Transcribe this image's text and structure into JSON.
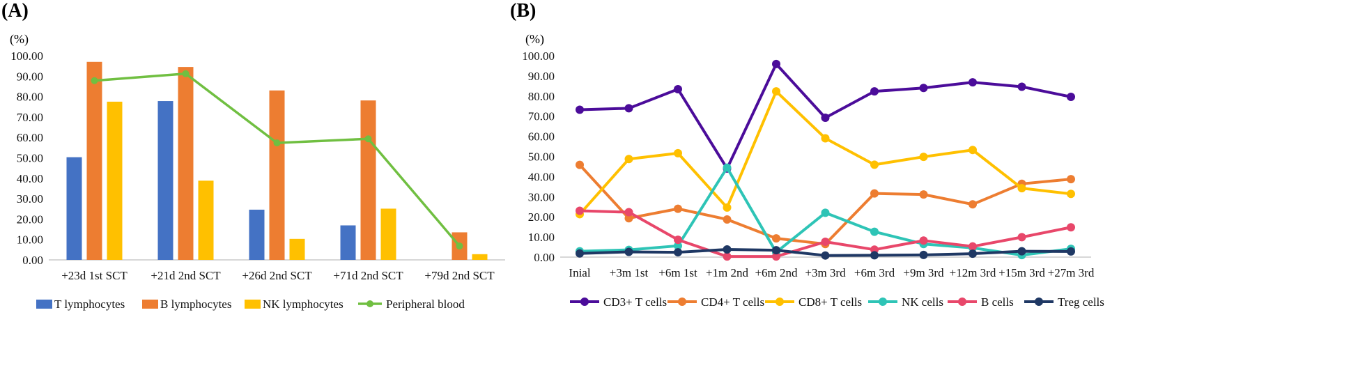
{
  "chart_data": [
    {
      "panel": "(A)",
      "type": "bar",
      "unit": "(%)",
      "ylim": [
        0,
        100
      ],
      "yticks": [
        "0.00",
        "10.00",
        "20.00",
        "30.00",
        "40.00",
        "50.00",
        "60.00",
        "70.00",
        "80.00",
        "90.00",
        "100.00"
      ],
      "categories": [
        "+23d 1st SCT",
        "+21d 2nd SCT",
        "+26d 2nd SCT",
        "+71d 2nd SCT",
        "+79d 2nd SCT"
      ],
      "series": [
        {
          "name": "T lymphocytes",
          "color": "#4472C4",
          "values": [
            50.3,
            77.8,
            24.6,
            16.9,
            0
          ]
        },
        {
          "name": "B lymphocytes",
          "color": "#ED7D31",
          "values": [
            97.0,
            94.5,
            83.0,
            78.1,
            13.5
          ]
        },
        {
          "name": "NK lymphocytes",
          "color": "#FFC000",
          "values": [
            77.5,
            38.8,
            10.3,
            25.1,
            2.8
          ]
        }
      ],
      "line_series": [
        {
          "name": "Peripheral blood",
          "color": "#70BF41",
          "values": [
            87.8,
            91.2,
            57.3,
            59.3,
            6.8
          ]
        }
      ],
      "legend_position": "bottom"
    },
    {
      "panel": "(B)",
      "type": "line",
      "unit": "(%)",
      "ylim": [
        0,
        100
      ],
      "yticks": [
        "0.00",
        "10.00",
        "20.00",
        "30.00",
        "40.00",
        "50.00",
        "60.00",
        "70.00",
        "80.00",
        "90.00",
        "100.00"
      ],
      "categories": [
        "Inial",
        "+3m 1st",
        "+6m 1st",
        "+1m 2nd",
        "+6m 2nd",
        "+3m 3rd",
        "+6m 3rd",
        "+9m 3rd",
        "+12m 3rd",
        "+15m 3rd",
        "+27m 3rd"
      ],
      "series": [
        {
          "name": "CD3+ T cells",
          "color": "#4B0C9A",
          "values": [
            73.2,
            73.9,
            83.4,
            44.0,
            95.9,
            69.2,
            82.3,
            84.0,
            86.8,
            84.6,
            79.6
          ]
        },
        {
          "name": "CD4+ T cells",
          "color": "#ED7D31",
          "values": [
            45.8,
            19.3,
            24.0,
            18.7,
            9.3,
            6.5,
            31.6,
            31.1,
            26.2,
            36.4,
            38.7
          ]
        },
        {
          "name": "CD8+ T cells",
          "color": "#FFC000",
          "values": [
            21.3,
            48.7,
            51.6,
            24.6,
            82.3,
            59.0,
            45.9,
            49.8,
            53.2,
            34.2,
            31.4
          ]
        },
        {
          "name": "NK cells",
          "color": "#2EC4B6",
          "values": [
            2.9,
            3.6,
            5.6,
            44.4,
            2.4,
            22.0,
            12.6,
            6.5,
            4.6,
            1.0,
            4.1
          ]
        },
        {
          "name": "B cells",
          "color": "#E8476A",
          "values": [
            23.0,
            22.3,
            8.6,
            0.3,
            0.3,
            7.6,
            3.7,
            8.2,
            5.3,
            9.9,
            14.8
          ]
        },
        {
          "name": "Treg cells",
          "color": "#1F3864",
          "values": [
            1.8,
            2.6,
            2.4,
            3.8,
            3.4,
            0.8,
            0.9,
            1.1,
            1.7,
            2.9,
            2.8
          ]
        }
      ],
      "legend_position": "bottom"
    }
  ]
}
